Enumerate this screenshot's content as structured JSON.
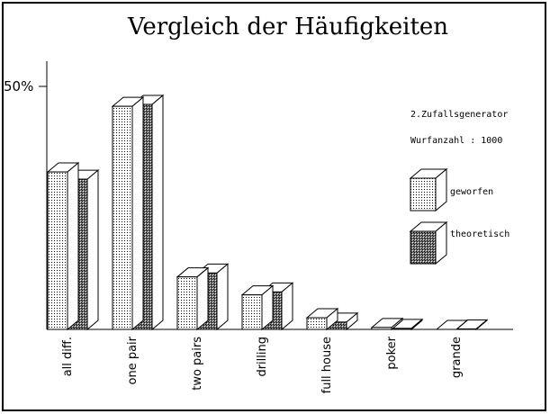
{
  "chart_data": {
    "type": "bar",
    "title": "Vergleich der Häufigkeiten",
    "y_tick_label": "50%",
    "ylim": [
      0,
      60
    ],
    "categories": [
      "all diff.",
      "one pair",
      "two pairs",
      "drilling",
      "full house",
      "poker",
      "grande"
    ],
    "series": [
      {
        "name": "geworfen",
        "values": [
          32.4,
          45.9,
          10.8,
          7.1,
          2.4,
          0.4,
          0.0
        ]
      },
      {
        "name": "theoretisch",
        "values": [
          30.9,
          46.3,
          11.6,
          7.7,
          1.5,
          0.2,
          0.1
        ]
      }
    ],
    "legend_position": "right",
    "annotations": [
      "2.Zufallsgenerator",
      "Wurfanzahl : 1000"
    ]
  }
}
